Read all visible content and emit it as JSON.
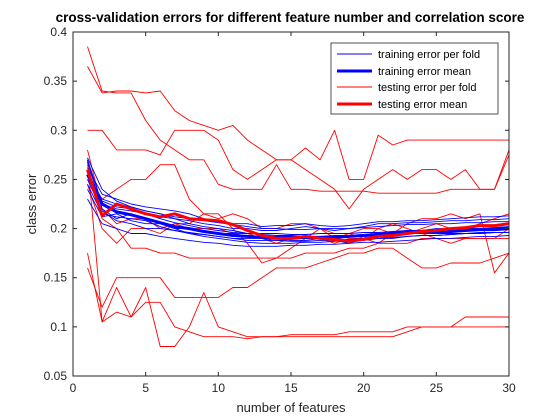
{
  "chart_data": {
    "type": "line",
    "title": "cross-validation errors for different feature number and correlation score",
    "xlabel": "number of features",
    "ylabel": "class error",
    "xlim": [
      0,
      30
    ],
    "ylim": [
      0.05,
      0.4
    ],
    "xticks": [
      0,
      5,
      10,
      15,
      20,
      25,
      30
    ],
    "yticks": [
      0.05,
      0.1,
      0.15,
      0.2,
      0.25,
      0.3,
      0.35,
      0.4
    ],
    "grid": false,
    "legend_position": "top-right",
    "colors": {
      "training": "#0000ff",
      "testing": "#ff0000",
      "axis": "#262626"
    },
    "legend": [
      {
        "label": "training error per fold",
        "color": "#0000ff",
        "style": "thin"
      },
      {
        "label": "training error mean",
        "color": "#0000ff",
        "style": "thick"
      },
      {
        "label": "testing error per fold",
        "color": "#ff0000",
        "style": "thin"
      },
      {
        "label": "testing error mean",
        "color": "#ff0000",
        "style": "thick"
      }
    ],
    "x": [
      1,
      2,
      3,
      4,
      5,
      6,
      7,
      8,
      9,
      10,
      11,
      12,
      13,
      14,
      15,
      16,
      17,
      18,
      19,
      20,
      21,
      22,
      23,
      24,
      25,
      26,
      27,
      28,
      29,
      30
    ],
    "series": [
      {
        "name": "training error per fold",
        "role": "train_fold",
        "values": [
          0.268,
          0.22,
          0.21,
          0.215,
          0.21,
          0.205,
          0.2,
          0.2,
          0.198,
          0.195,
          0.195,
          0.192,
          0.19,
          0.19,
          0.188,
          0.188,
          0.19,
          0.188,
          0.185,
          0.19,
          0.192,
          0.192,
          0.195,
          0.195,
          0.195,
          0.195,
          0.195,
          0.196,
          0.196,
          0.196
        ]
      },
      {
        "role": "train_fold",
        "values": [
          0.255,
          0.23,
          0.225,
          0.222,
          0.218,
          0.215,
          0.21,
          0.205,
          0.202,
          0.2,
          0.198,
          0.195,
          0.195,
          0.195,
          0.194,
          0.194,
          0.195,
          0.195,
          0.195,
          0.196,
          0.196,
          0.197,
          0.198,
          0.198,
          0.2,
          0.2,
          0.2,
          0.2,
          0.201,
          0.201
        ]
      },
      {
        "role": "train_fold",
        "values": [
          0.24,
          0.212,
          0.215,
          0.208,
          0.205,
          0.205,
          0.2,
          0.195,
          0.192,
          0.19,
          0.188,
          0.186,
          0.185,
          0.185,
          0.185,
          0.186,
          0.186,
          0.187,
          0.188,
          0.188,
          0.19,
          0.19,
          0.192,
          0.193,
          0.193,
          0.194,
          0.195,
          0.195,
          0.196,
          0.196
        ]
      },
      {
        "role": "train_fold",
        "values": [
          0.27,
          0.225,
          0.22,
          0.218,
          0.215,
          0.212,
          0.21,
          0.208,
          0.205,
          0.203,
          0.2,
          0.2,
          0.198,
          0.198,
          0.2,
          0.202,
          0.2,
          0.198,
          0.2,
          0.202,
          0.205,
          0.205,
          0.206,
          0.206,
          0.207,
          0.208,
          0.208,
          0.209,
          0.209,
          0.21
        ]
      },
      {
        "role": "train_fold",
        "values": [
          0.23,
          0.205,
          0.2,
          0.195,
          0.195,
          0.192,
          0.19,
          0.188,
          0.186,
          0.185,
          0.183,
          0.182,
          0.182,
          0.182,
          0.183,
          0.183,
          0.184,
          0.184,
          0.185,
          0.186,
          0.186,
          0.187,
          0.188,
          0.189,
          0.19,
          0.19,
          0.191,
          0.192,
          0.192,
          0.193
        ]
      },
      {
        "role": "train_fold",
        "values": [
          0.262,
          0.235,
          0.23,
          0.225,
          0.222,
          0.22,
          0.218,
          0.215,
          0.21,
          0.208,
          0.205,
          0.205,
          0.202,
          0.203,
          0.203,
          0.205,
          0.203,
          0.202,
          0.203,
          0.205,
          0.207,
          0.207,
          0.208,
          0.208,
          0.209,
          0.21,
          0.211,
          0.212,
          0.212,
          0.213
        ]
      },
      {
        "role": "train_fold",
        "values": [
          0.25,
          0.218,
          0.208,
          0.205,
          0.2,
          0.2,
          0.198,
          0.195,
          0.194,
          0.192,
          0.19,
          0.19,
          0.19,
          0.188,
          0.187,
          0.187,
          0.188,
          0.188,
          0.189,
          0.19,
          0.19,
          0.191,
          0.192,
          0.193,
          0.193,
          0.194,
          0.195,
          0.195,
          0.196,
          0.196
        ]
      },
      {
        "role": "train_fold",
        "values": [
          0.272,
          0.24,
          0.228,
          0.222,
          0.218,
          0.215,
          0.212,
          0.21,
          0.208,
          0.206,
          0.204,
          0.202,
          0.2,
          0.2,
          0.199,
          0.199,
          0.2,
          0.2,
          0.2,
          0.201,
          0.202,
          0.203,
          0.204,
          0.204,
          0.205,
          0.205,
          0.206,
          0.206,
          0.207,
          0.207
        ]
      },
      {
        "role": "train_fold",
        "values": [
          0.245,
          0.215,
          0.212,
          0.21,
          0.208,
          0.202,
          0.198,
          0.196,
          0.194,
          0.192,
          0.19,
          0.188,
          0.188,
          0.188,
          0.189,
          0.19,
          0.19,
          0.191,
          0.192,
          0.192,
          0.193,
          0.194,
          0.195,
          0.196,
          0.196,
          0.197,
          0.198,
          0.199,
          0.2,
          0.2
        ]
      },
      {
        "role": "train_fold",
        "values": [
          0.258,
          0.228,
          0.222,
          0.22,
          0.215,
          0.21,
          0.206,
          0.203,
          0.2,
          0.198,
          0.196,
          0.195,
          0.194,
          0.193,
          0.193,
          0.192,
          0.192,
          0.193,
          0.193,
          0.194,
          0.195,
          0.196,
          0.197,
          0.198,
          0.198,
          0.199,
          0.2,
          0.2,
          0.201,
          0.202
        ]
      },
      {
        "name": "training error mean",
        "role": "train_mean",
        "values": [
          0.255,
          0.225,
          0.217,
          0.214,
          0.21,
          0.206,
          0.202,
          0.2,
          0.197,
          0.195,
          0.193,
          0.192,
          0.191,
          0.191,
          0.191,
          0.191,
          0.191,
          0.191,
          0.192,
          0.193,
          0.194,
          0.195,
          0.196,
          0.196,
          0.197,
          0.197,
          0.198,
          0.199,
          0.199,
          0.2
        ]
      },
      {
        "name": "testing error per fold",
        "role": "test_fold",
        "values": [
          0.385,
          0.34,
          0.338,
          0.338,
          0.31,
          0.29,
          0.28,
          0.27,
          0.27,
          0.245,
          0.24,
          0.24,
          0.24,
          0.265,
          0.24,
          0.24,
          0.238,
          0.238,
          0.238,
          0.238,
          0.236,
          0.236,
          0.236,
          0.236,
          0.236,
          0.24,
          0.24,
          0.24,
          0.24,
          0.275
        ]
      },
      {
        "role": "test_fold",
        "values": [
          0.365,
          0.338,
          0.34,
          0.34,
          0.338,
          0.34,
          0.32,
          0.31,
          0.305,
          0.3,
          0.305,
          0.29,
          0.28,
          0.27,
          0.27,
          0.282,
          0.27,
          0.3,
          0.25,
          0.25,
          0.295,
          0.285,
          0.29,
          0.29,
          0.29,
          0.29,
          0.29,
          0.29,
          0.29,
          0.29
        ]
      },
      {
        "role": "test_fold",
        "values": [
          0.3,
          0.3,
          0.28,
          0.28,
          0.28,
          0.275,
          0.3,
          0.3,
          0.3,
          0.29,
          0.26,
          0.25,
          0.26,
          0.27,
          0.27,
          0.26,
          0.25,
          0.24,
          0.22,
          0.24,
          0.25,
          0.26,
          0.25,
          0.26,
          0.26,
          0.25,
          0.26,
          0.24,
          0.24,
          0.28
        ]
      },
      {
        "role": "test_fold",
        "values": [
          0.27,
          0.105,
          0.14,
          0.11,
          0.14,
          0.08,
          0.08,
          0.1,
          0.135,
          0.1,
          0.095,
          0.09,
          0.09,
          0.09,
          0.092,
          0.092,
          0.092,
          0.092,
          0.095,
          0.095,
          0.095,
          0.095,
          0.1,
          0.1,
          0.1,
          0.1,
          0.1,
          0.1,
          0.1,
          0.1
        ]
      },
      {
        "role": "test_fold",
        "values": [
          0.175,
          0.105,
          0.115,
          0.11,
          0.125,
          0.125,
          0.1,
          0.095,
          0.09,
          0.09,
          0.09,
          0.088,
          0.09,
          0.09,
          0.09,
          0.09,
          0.09,
          0.09,
          0.09,
          0.09,
          0.09,
          0.09,
          0.095,
          0.1,
          0.1,
          0.1,
          0.11,
          0.11,
          0.11,
          0.11
        ]
      },
      {
        "role": "test_fold",
        "values": [
          0.16,
          0.12,
          0.15,
          0.15,
          0.15,
          0.15,
          0.13,
          0.13,
          0.13,
          0.13,
          0.14,
          0.14,
          0.15,
          0.16,
          0.16,
          0.16,
          0.165,
          0.17,
          0.175,
          0.175,
          0.18,
          0.18,
          0.17,
          0.16,
          0.16,
          0.165,
          0.165,
          0.165,
          0.17,
          0.175
        ]
      },
      {
        "role": "test_fold",
        "values": [
          0.265,
          0.21,
          0.2,
          0.18,
          0.18,
          0.175,
          0.175,
          0.17,
          0.17,
          0.17,
          0.17,
          0.17,
          0.17,
          0.17,
          0.17,
          0.175,
          0.175,
          0.175,
          0.18,
          0.18,
          0.185,
          0.185,
          0.185,
          0.19,
          0.19,
          0.19,
          0.19,
          0.19,
          0.19,
          0.19
        ]
      },
      {
        "role": "test_fold",
        "values": [
          0.25,
          0.23,
          0.24,
          0.25,
          0.25,
          0.265,
          0.265,
          0.23,
          0.215,
          0.215,
          0.2,
          0.185,
          0.165,
          0.17,
          0.18,
          0.19,
          0.2,
          0.19,
          0.195,
          0.19,
          0.2,
          0.205,
          0.2,
          0.195,
          0.19,
          0.185,
          0.19,
          0.19,
          0.19,
          0.2
        ]
      },
      {
        "role": "test_fold",
        "values": [
          0.245,
          0.2,
          0.185,
          0.2,
          0.2,
          0.195,
          0.205,
          0.2,
          0.2,
          0.2,
          0.195,
          0.195,
          0.19,
          0.185,
          0.19,
          0.19,
          0.19,
          0.185,
          0.19,
          0.19,
          0.185,
          0.195,
          0.205,
          0.21,
          0.21,
          0.215,
          0.21,
          0.215,
          0.155,
          0.175
        ]
      },
      {
        "role": "test_fold",
        "values": [
          0.28,
          0.22,
          0.205,
          0.21,
          0.21,
          0.2,
          0.205,
          0.205,
          0.215,
          0.21,
          0.215,
          0.21,
          0.2,
          0.2,
          0.205,
          0.205,
          0.2,
          0.195,
          0.195,
          0.2,
          0.2,
          0.195,
          0.195,
          0.2,
          0.205,
          0.2,
          0.2,
          0.205,
          0.21,
          0.215
        ]
      },
      {
        "name": "testing error mean",
        "role": "test_mean",
        "values": [
          0.26,
          0.213,
          0.225,
          0.22,
          0.215,
          0.212,
          0.215,
          0.21,
          0.209,
          0.208,
          0.204,
          0.198,
          0.193,
          0.19,
          0.19,
          0.192,
          0.19,
          0.189,
          0.187,
          0.189,
          0.192,
          0.193,
          0.195,
          0.197,
          0.198,
          0.2,
          0.201,
          0.203,
          0.203,
          0.205
        ]
      }
    ]
  }
}
